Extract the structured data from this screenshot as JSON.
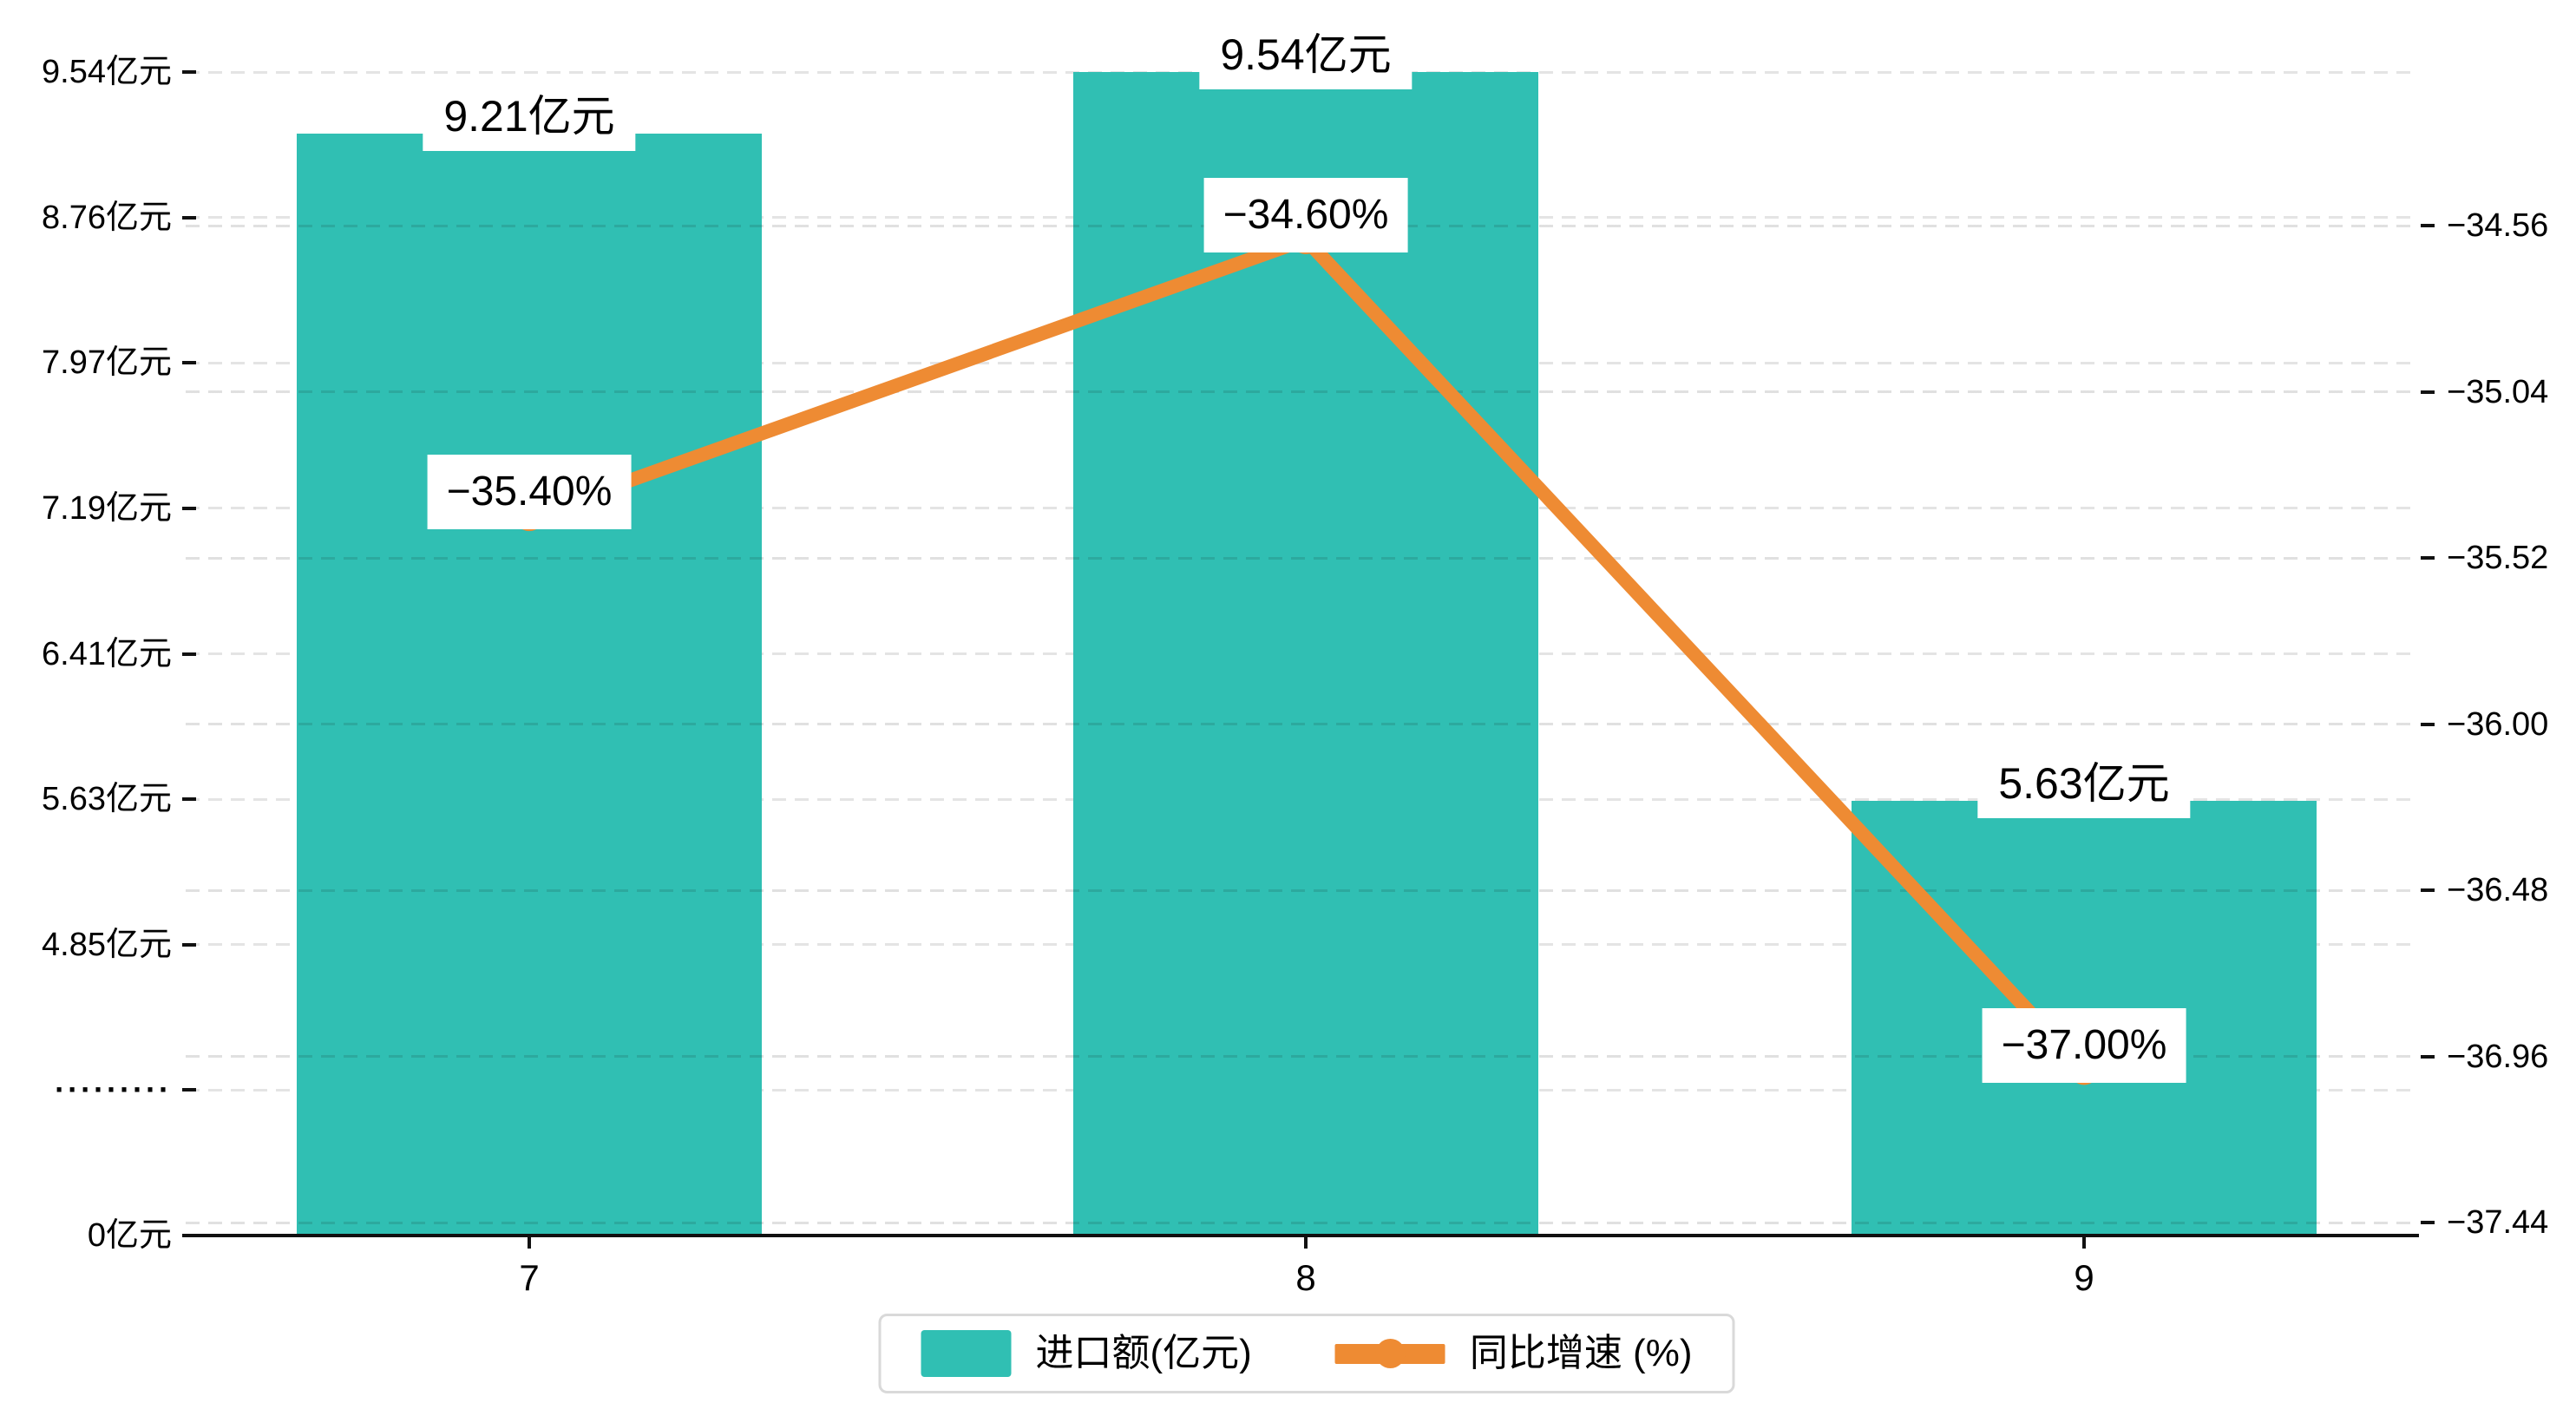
{
  "chart_data": {
    "type": "bar",
    "combo": "bar-line-dual-axis",
    "title": "",
    "categories": [
      "7",
      "8",
      "9"
    ],
    "series": [
      {
        "name": "进口额(亿元)",
        "type": "bar",
        "axis": "left",
        "unit": "亿元",
        "values": [
          9.21,
          9.54,
          5.63
        ],
        "data_labels": [
          "9.21亿元",
          "9.54亿元",
          "5.63亿元"
        ],
        "color": "#30bfb3"
      },
      {
        "name": "同比增速 (%)",
        "type": "line",
        "axis": "right",
        "unit": "%",
        "values": [
          -35.4,
          -34.6,
          -37.0
        ],
        "data_labels": [
          "−35.40%",
          "−34.60%",
          "−37.00%"
        ],
        "color": "#ee8b33"
      }
    ],
    "left_axis": {
      "tick_labels": [
        "9.54亿元",
        "8.76亿元",
        "7.97亿元",
        "7.19亿元",
        "6.41亿元",
        "5.63亿元",
        "4.85亿元",
        "·········",
        "0亿元"
      ],
      "max": 9.54,
      "tick_step": 0.78,
      "axis_break": true,
      "min": 0
    },
    "right_axis": {
      "tick_labels": [
        "−34.56",
        "−35.04",
        "−35.52",
        "−36.00",
        "−36.48",
        "−36.96",
        "−37.44"
      ],
      "max": -34.56,
      "min": -37.44,
      "tick_step": 0.48
    },
    "grid": "dashed-horizontal",
    "legend_position": "bottom-center"
  },
  "legend": {
    "items": [
      {
        "label": "进口额(亿元)",
        "swatch": "bar"
      },
      {
        "label": "同比增速 (%)",
        "swatch": "line"
      }
    ]
  },
  "colors": {
    "bar": "#30bfb3",
    "line": "#ee8b33",
    "grid": "#e4e4e4",
    "axis": "#111111",
    "label_bg": "#ffffff",
    "legend_border": "#d9d9d9",
    "background": "#ffffff"
  }
}
